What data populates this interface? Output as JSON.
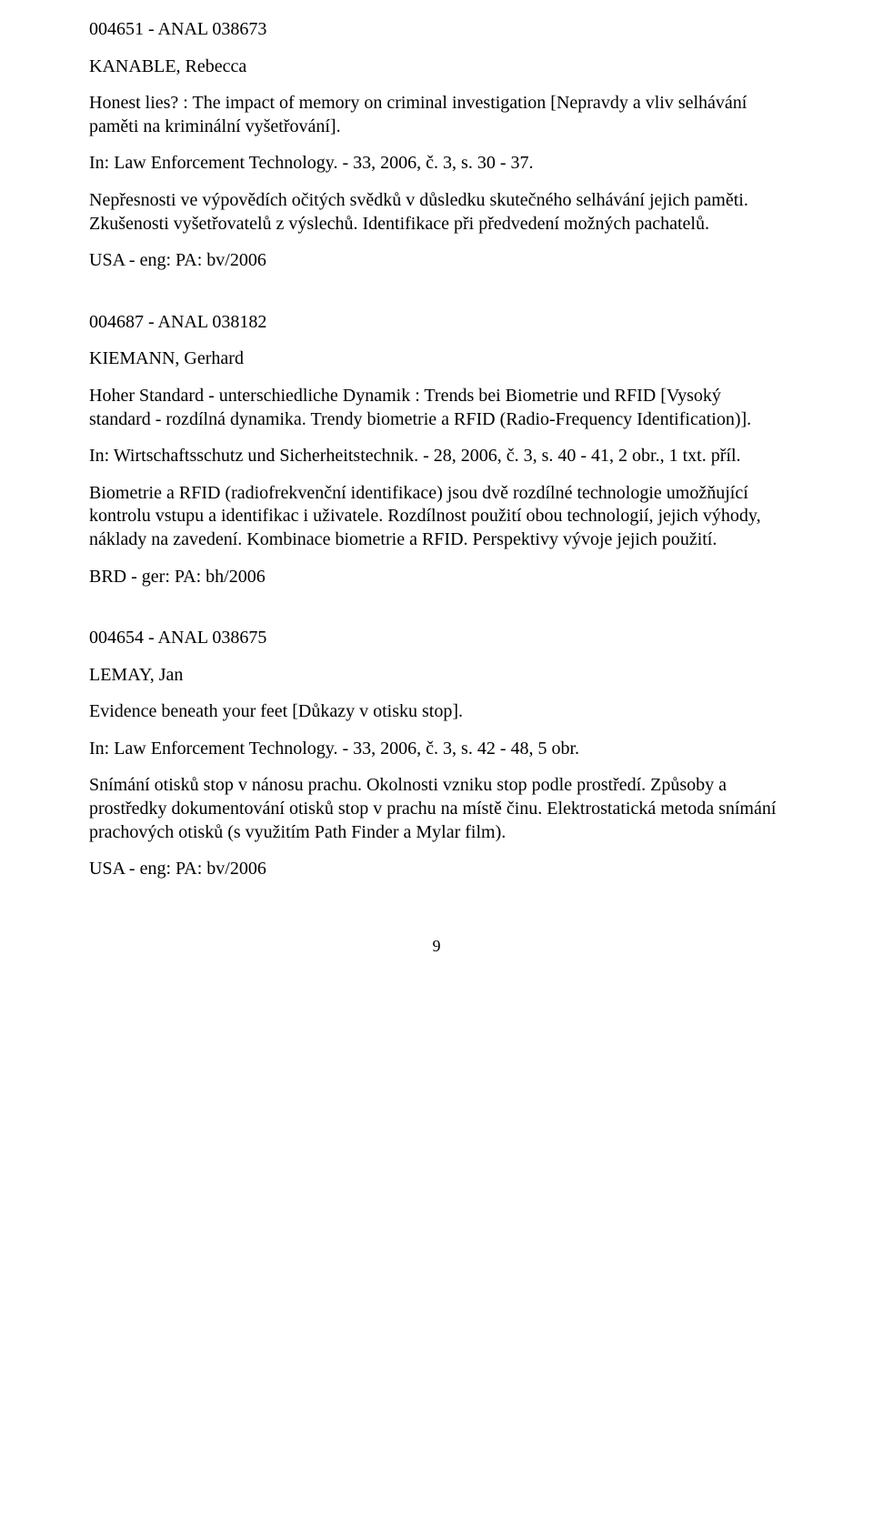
{
  "entries": [
    {
      "code": "004651 - ANAL 038673",
      "author": "KANABLE, Rebecca",
      "title": "Honest lies? : The impact of memory on criminal investigation [Nepravdy a vliv selhávání paměti na kriminální vyšetřování].",
      "source": "In: Law Enforcement Technology. - 33, 2006, č. 3, s. 30 - 37.",
      "abstract": " Nepřesnosti ve výpovědích očitých svědků v důsledku skutečného selhávání jejich paměti. Zkušenosti vyšetřovatelů z výslechů. Identifikace při předvedení možných pachatelů.",
      "tag": "USA - eng: PA: bv/2006"
    },
    {
      "code": "004687 - ANAL 038182",
      "author": "KIEMANN, Gerhard",
      "title": "Hoher Standard - unterschiedliche Dynamik : Trends bei Biometrie und RFID [Vysoký standard - rozdílná dynamika. Trendy biometrie a RFID (Radio-Frequency Identification)].",
      "source": "In: Wirtschaftsschutz und Sicherheitstechnik. - 28, 2006, č. 3, s. 40 - 41, 2 obr., 1 txt. příl.",
      "abstract": " Biometrie a RFID (radiofrekvenční identifikace) jsou dvě rozdílné technologie umožňující kontrolu vstupu a identifikac i uživatele. Rozdílnost použití obou technologií, jejich výhody, náklady na zavedení. Kombinace biometrie a RFID. Perspektivy vývoje jejich použití.",
      "tag": "BRD - ger: PA: bh/2006"
    },
    {
      "code": "004654 - ANAL 038675",
      "author": "LEMAY, Jan",
      "title": "Evidence beneath your feet [Důkazy v otisku stop].",
      "source": "In: Law Enforcement Technology. - 33, 2006, č. 3, s. 42 - 48, 5 obr.",
      "abstract": " Snímání otisků stop v nánosu prachu. Okolnosti vzniku stop podle prostředí. Způsoby a prostředky dokumentování otisků stop v prachu na místě činu. Elektrostatická metoda snímání prachových otisků (s využitím Path Finder a Mylar film).",
      "tag": "USA - eng: PA: bv/2006"
    }
  ],
  "pageNumber": "9"
}
